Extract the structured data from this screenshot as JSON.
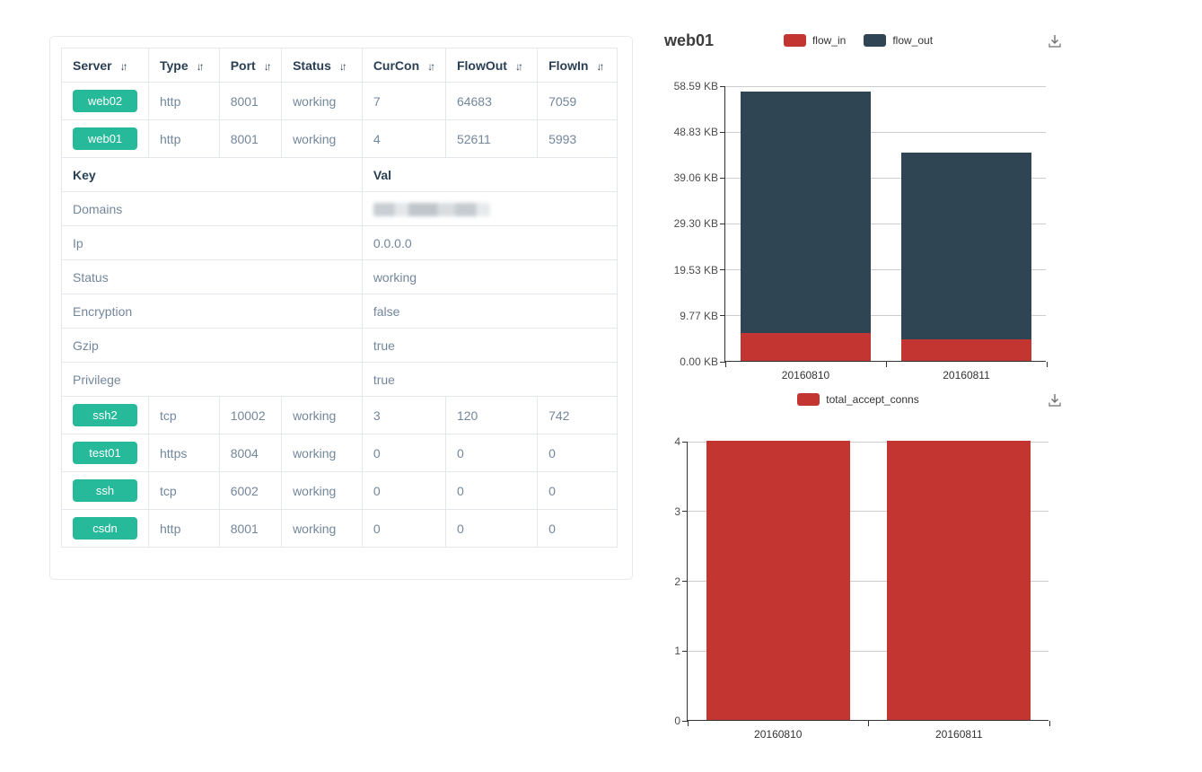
{
  "colors": {
    "badge_green": "#26b99a",
    "flow_in_red": "#c23531",
    "flow_out_slate": "#2f4554",
    "header_text": "#2a3f54",
    "cell_text": "#73879c",
    "grid_line": "#cccccc",
    "axis_line": "#333333"
  },
  "icons": {
    "sort_glyph": "↓↑",
    "download": "download-icon"
  },
  "table": {
    "columns": [
      {
        "label": "Server",
        "sortable": true
      },
      {
        "label": "Type",
        "sortable": true
      },
      {
        "label": "Port",
        "sortable": true
      },
      {
        "label": "Status",
        "sortable": true
      },
      {
        "label": "CurCon",
        "sortable": true
      },
      {
        "label": "FlowOut",
        "sortable": true
      },
      {
        "label": "FlowIn",
        "sortable": true
      }
    ],
    "server_rows_top": [
      {
        "server": "web02",
        "type": "http",
        "port": "8001",
        "status": "working",
        "curcon": "7",
        "flowout": "64683",
        "flowin": "7059"
      },
      {
        "server": "web01",
        "type": "http",
        "port": "8001",
        "status": "working",
        "curcon": "4",
        "flowout": "52611",
        "flowin": "5993"
      }
    ],
    "kv_header": {
      "key": "Key",
      "val": "Val"
    },
    "kv_rows": [
      {
        "key": "Domains",
        "val": "",
        "redacted": true
      },
      {
        "key": "Ip",
        "val": "0.0.0.0",
        "redacted": false
      },
      {
        "key": "Status",
        "val": "working",
        "redacted": false
      },
      {
        "key": "Encryption",
        "val": "false",
        "redacted": false
      },
      {
        "key": "Gzip",
        "val": "true",
        "redacted": false
      },
      {
        "key": "Privilege",
        "val": "true",
        "redacted": false
      }
    ],
    "server_rows_bottom": [
      {
        "server": "ssh2",
        "type": "tcp",
        "port": "10002",
        "status": "working",
        "curcon": "3",
        "flowout": "120",
        "flowin": "742"
      },
      {
        "server": "test01",
        "type": "https",
        "port": "8004",
        "status": "working",
        "curcon": "0",
        "flowout": "0",
        "flowin": "0"
      },
      {
        "server": "ssh",
        "type": "tcp",
        "port": "6002",
        "status": "working",
        "curcon": "0",
        "flowout": "0",
        "flowin": "0"
      },
      {
        "server": "csdn",
        "type": "http",
        "port": "8001",
        "status": "working",
        "curcon": "0",
        "flowout": "0",
        "flowin": "0"
      }
    ]
  },
  "chart_data": [
    {
      "type": "bar",
      "stacked": true,
      "title": "web01",
      "categories": [
        "20160810",
        "20160811"
      ],
      "series": [
        {
          "name": "flow_in",
          "color": "#c23531",
          "values": [
            5.85,
            4.5
          ]
        },
        {
          "name": "flow_out",
          "color": "#2f4554",
          "values": [
            51.38,
            39.8
          ]
        }
      ],
      "unit": "KB",
      "ylim": [
        0,
        58.59
      ],
      "ticks": [
        {
          "label": "0.00 KB",
          "value": 0
        },
        {
          "label": "9.77 KB",
          "value": 9.77
        },
        {
          "label": "19.53 KB",
          "value": 19.53
        },
        {
          "label": "29.30 KB",
          "value": 29.3
        },
        {
          "label": "39.06 KB",
          "value": 39.06
        },
        {
          "label": "48.83 KB",
          "value": 48.83
        },
        {
          "label": "58.59 KB",
          "value": 58.59
        }
      ],
      "legend_position": "top-center",
      "grid": true
    },
    {
      "type": "bar",
      "stacked": false,
      "title": "",
      "categories": [
        "20160810",
        "20160811"
      ],
      "series": [
        {
          "name": "total_accept_conns",
          "color": "#c23531",
          "values": [
            4,
            4
          ]
        }
      ],
      "unit": "",
      "ylim": [
        0,
        4
      ],
      "ticks": [
        {
          "label": "0",
          "value": 0
        },
        {
          "label": "1",
          "value": 1
        },
        {
          "label": "2",
          "value": 2
        },
        {
          "label": "3",
          "value": 3
        },
        {
          "label": "4",
          "value": 4
        }
      ],
      "legend_position": "top-center",
      "grid": true
    }
  ]
}
